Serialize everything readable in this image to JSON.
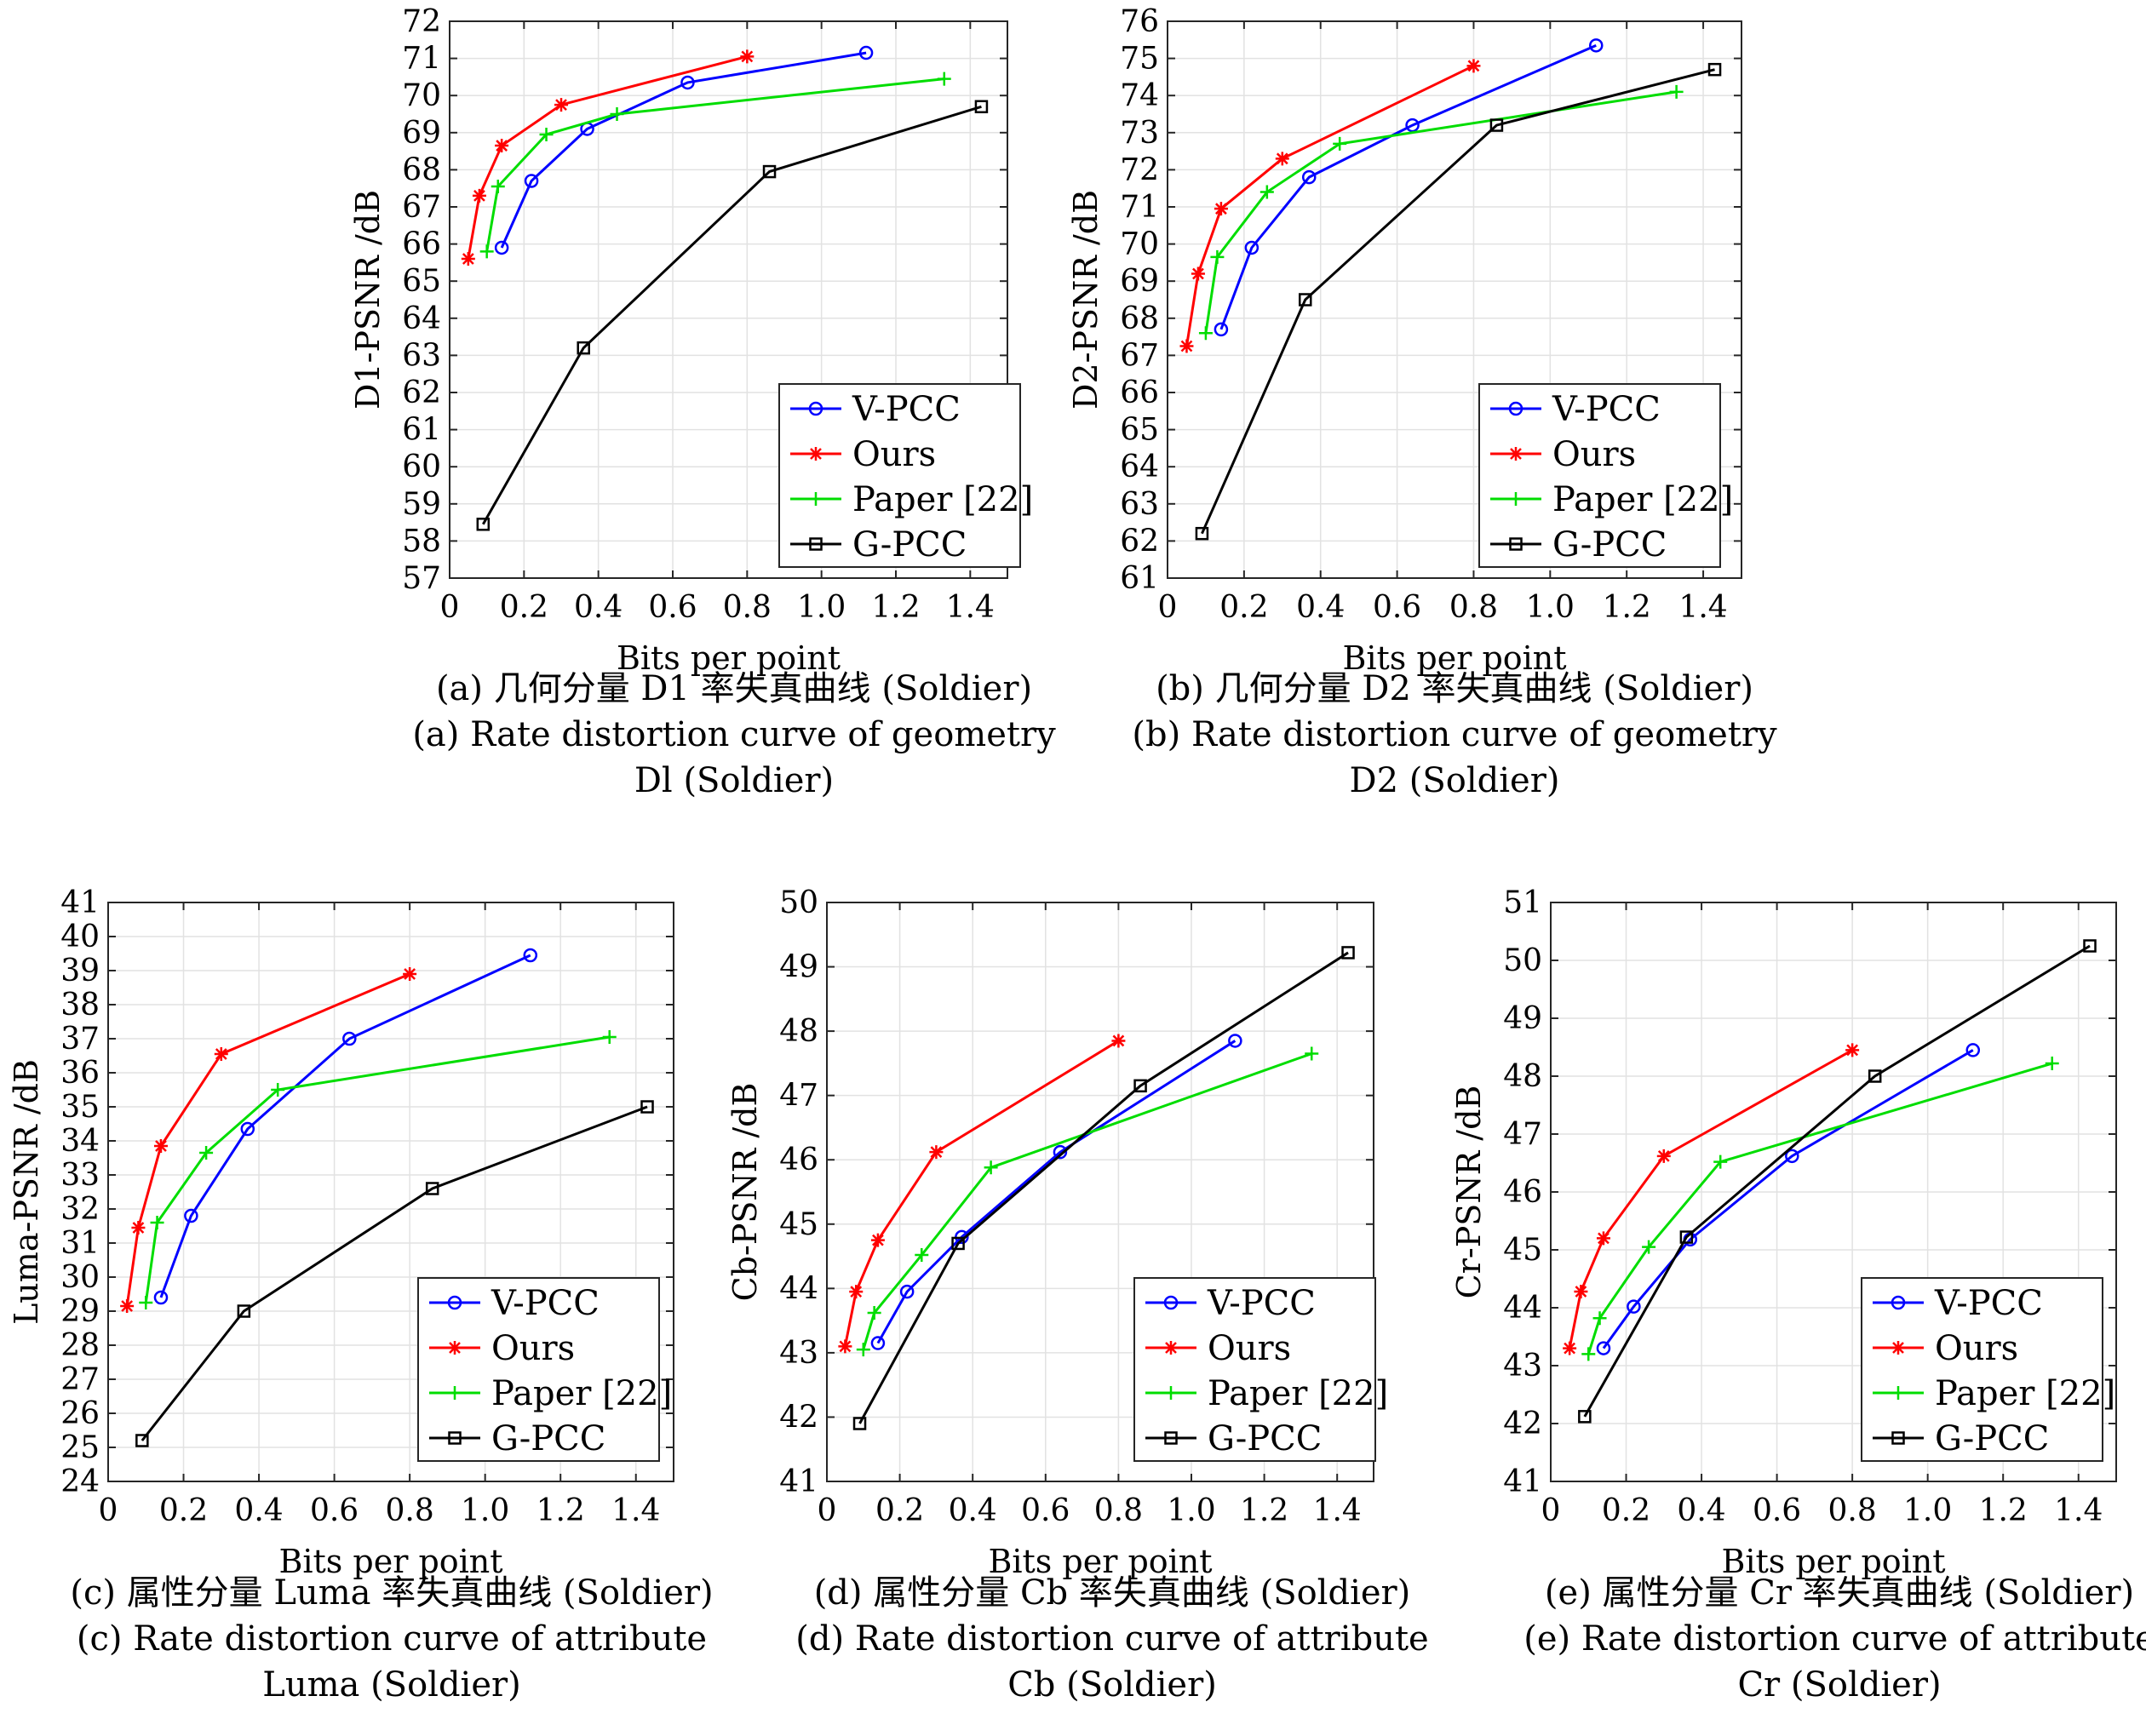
{
  "chart_data": [
    {
      "type": "line",
      "xlabel": "Bits per point",
      "ylabel": "D1-PSNR /dB",
      "xlim": [
        0,
        1.5
      ],
      "ylim": [
        57,
        72
      ],
      "x_ticks": [
        0,
        0.2,
        0.4,
        0.6,
        0.8,
        1.0,
        1.2,
        1.4
      ],
      "x_tick_labels": [
        "0",
        "0.2",
        "0.4",
        "0.6",
        "0.8",
        "1.0",
        "1.2",
        "1.4"
      ],
      "y_ticks": [
        57,
        58,
        59,
        60,
        61,
        62,
        63,
        64,
        65,
        66,
        67,
        68,
        69,
        70,
        71,
        72
      ],
      "y_tick_labels": [
        "57",
        "58",
        "59",
        "60",
        "61",
        "62",
        "63",
        "64",
        "65",
        "66",
        "67",
        "68",
        "69",
        "70",
        "71",
        "72"
      ],
      "grid": true,
      "legend": "bottom-right",
      "caption_cn": "(a) 几何分量 D1 率失真曲线 (Soldier)",
      "caption_en": [
        "(a) Rate distortion curve of geometry",
        "Dl (Soldier)"
      ],
      "series": [
        {
          "name": "V-PCC",
          "color": "#0000ff",
          "marker": "circle",
          "x": [
            0.14,
            0.22,
            0.37,
            0.64,
            1.12
          ],
          "y": [
            65.9,
            67.7,
            69.1,
            70.35,
            71.15
          ]
        },
        {
          "name": "Ours",
          "color": "#ff0000",
          "marker": "star",
          "x": [
            0.05,
            0.08,
            0.14,
            0.3,
            0.8
          ],
          "y": [
            65.6,
            67.3,
            68.65,
            69.75,
            71.05
          ]
        },
        {
          "name": "Paper [22]",
          "color": "#00dd00",
          "marker": "plus",
          "x": [
            0.1,
            0.13,
            0.26,
            0.45,
            1.33
          ],
          "y": [
            65.8,
            67.55,
            68.95,
            69.5,
            70.45
          ]
        },
        {
          "name": "G-PCC",
          "color": "#000000",
          "marker": "square",
          "x": [
            0.09,
            0.36,
            0.86,
            1.43
          ],
          "y": [
            58.45,
            63.2,
            67.95,
            69.7
          ]
        }
      ]
    },
    {
      "type": "line",
      "xlabel": "Bits per point",
      "ylabel": "D2-PSNR /dB",
      "xlim": [
        0,
        1.5
      ],
      "ylim": [
        61,
        76
      ],
      "x_ticks": [
        0,
        0.2,
        0.4,
        0.6,
        0.8,
        1.0,
        1.2,
        1.4
      ],
      "x_tick_labels": [
        "0",
        "0.2",
        "0.4",
        "0.6",
        "0.8",
        "1.0",
        "1.2",
        "1.4"
      ],
      "y_ticks": [
        61,
        62,
        63,
        64,
        65,
        66,
        67,
        68,
        69,
        70,
        71,
        72,
        73,
        74,
        75,
        76
      ],
      "y_tick_labels": [
        "61",
        "62",
        "63",
        "64",
        "65",
        "66",
        "67",
        "68",
        "69",
        "70",
        "71",
        "72",
        "73",
        "74",
        "75",
        "76"
      ],
      "grid": true,
      "legend": "bottom-right",
      "caption_cn": "(b) 几何分量 D2 率失真曲线 (Soldier)",
      "caption_en": [
        "(b) Rate distortion curve of geometry",
        "D2 (Soldier)"
      ],
      "series": [
        {
          "name": "V-PCC",
          "color": "#0000ff",
          "marker": "circle",
          "x": [
            0.14,
            0.22,
            0.37,
            0.64,
            1.12
          ],
          "y": [
            67.7,
            69.9,
            71.8,
            73.2,
            75.35
          ]
        },
        {
          "name": "Ours",
          "color": "#ff0000",
          "marker": "star",
          "x": [
            0.05,
            0.08,
            0.14,
            0.3,
            0.8
          ],
          "y": [
            67.25,
            69.2,
            70.95,
            72.3,
            74.8
          ]
        },
        {
          "name": "Paper [22]",
          "color": "#00dd00",
          "marker": "plus",
          "x": [
            0.1,
            0.13,
            0.26,
            0.45,
            1.33
          ],
          "y": [
            67.6,
            69.65,
            71.4,
            72.7,
            74.1
          ]
        },
        {
          "name": "G-PCC",
          "color": "#000000",
          "marker": "square",
          "x": [
            0.09,
            0.36,
            0.86,
            1.43
          ],
          "y": [
            62.2,
            68.5,
            73.2,
            74.7
          ]
        }
      ]
    },
    {
      "type": "line",
      "xlabel": "Bits per point",
      "ylabel": "Luma-PSNR /dB",
      "xlim": [
        0,
        1.5
      ],
      "ylim": [
        24,
        41
      ],
      "x_ticks": [
        0,
        0.2,
        0.4,
        0.6,
        0.8,
        1.0,
        1.2,
        1.4
      ],
      "x_tick_labels": [
        "0",
        "0.2",
        "0.4",
        "0.6",
        "0.8",
        "1.0",
        "1.2",
        "1.4"
      ],
      "y_ticks": [
        24,
        25,
        26,
        27,
        28,
        29,
        30,
        31,
        32,
        33,
        34,
        35,
        36,
        37,
        38,
        39,
        40,
        41
      ],
      "y_tick_labels": [
        "24",
        "25",
        "26",
        "27",
        "28",
        "29",
        "30",
        "31",
        "32",
        "33",
        "34",
        "35",
        "36",
        "37",
        "38",
        "39",
        "40",
        "41"
      ],
      "grid": true,
      "legend": "bottom-right",
      "caption_cn": "(c) 属性分量 Luma 率失真曲线 (Soldier)",
      "caption_en": [
        "(c) Rate distortion curve of attribute",
        "Luma (Soldier)"
      ],
      "series": [
        {
          "name": "V-PCC",
          "color": "#0000ff",
          "marker": "circle",
          "x": [
            0.14,
            0.22,
            0.37,
            0.64,
            1.12
          ],
          "y": [
            29.4,
            31.8,
            34.35,
            37.0,
            39.45
          ]
        },
        {
          "name": "Ours",
          "color": "#ff0000",
          "marker": "star",
          "x": [
            0.05,
            0.08,
            0.14,
            0.3,
            0.8
          ],
          "y": [
            29.15,
            31.45,
            33.85,
            36.55,
            38.9
          ]
        },
        {
          "name": "Paper [22]",
          "color": "#00dd00",
          "marker": "plus",
          "x": [
            0.1,
            0.13,
            0.26,
            0.45,
            1.33
          ],
          "y": [
            29.25,
            31.6,
            33.65,
            35.5,
            37.05
          ]
        },
        {
          "name": "G-PCC",
          "color": "#000000",
          "marker": "square",
          "x": [
            0.09,
            0.36,
            0.86,
            1.43
          ],
          "y": [
            25.2,
            29.0,
            32.6,
            35.0
          ]
        }
      ]
    },
    {
      "type": "line",
      "xlabel": "Bits per point",
      "ylabel": "Cb-PSNR /dB",
      "xlim": [
        0,
        1.5
      ],
      "ylim": [
        41,
        50
      ],
      "x_ticks": [
        0,
        0.2,
        0.4,
        0.6,
        0.8,
        1.0,
        1.2,
        1.4
      ],
      "x_tick_labels": [
        "0",
        "0.2",
        "0.4",
        "0.6",
        "0.8",
        "1.0",
        "1.2",
        "1.4"
      ],
      "y_ticks": [
        41,
        42,
        43,
        44,
        45,
        46,
        47,
        48,
        49,
        50
      ],
      "y_tick_labels": [
        "41",
        "42",
        "43",
        "44",
        "45",
        "46",
        "47",
        "48",
        "49",
        "50"
      ],
      "grid": true,
      "legend": "bottom-right",
      "caption_cn": "(d) 属性分量 Cb 率失真曲线 (Soldier)",
      "caption_en": [
        "(d) Rate distortion curve of attribute",
        "Cb (Soldier)"
      ],
      "series": [
        {
          "name": "V-PCC",
          "color": "#0000ff",
          "marker": "circle",
          "x": [
            0.14,
            0.22,
            0.37,
            0.64,
            1.12
          ],
          "y": [
            43.15,
            43.95,
            44.8,
            46.12,
            47.85
          ]
        },
        {
          "name": "Ours",
          "color": "#ff0000",
          "marker": "star",
          "x": [
            0.05,
            0.08,
            0.14,
            0.3,
            0.8
          ],
          "y": [
            43.1,
            43.95,
            44.75,
            46.12,
            47.85
          ]
        },
        {
          "name": "Paper [22]",
          "color": "#00dd00",
          "marker": "plus",
          "x": [
            0.1,
            0.13,
            0.26,
            0.45,
            1.33
          ],
          "y": [
            43.05,
            43.62,
            44.52,
            45.88,
            47.65
          ]
        },
        {
          "name": "G-PCC",
          "color": "#000000",
          "marker": "square",
          "x": [
            0.09,
            0.36,
            0.86,
            1.43
          ],
          "y": [
            41.9,
            44.7,
            47.15,
            49.22
          ]
        }
      ]
    },
    {
      "type": "line",
      "xlabel": "Bits per point",
      "ylabel": "Cr-PSNR /dB",
      "xlim": [
        0,
        1.5
      ],
      "ylim": [
        41,
        51
      ],
      "x_ticks": [
        0,
        0.2,
        0.4,
        0.6,
        0.8,
        1.0,
        1.2,
        1.4
      ],
      "x_tick_labels": [
        "0",
        "0.2",
        "0.4",
        "0.6",
        "0.8",
        "1.0",
        "1.2",
        "1.4"
      ],
      "y_ticks": [
        41,
        42,
        43,
        44,
        45,
        46,
        47,
        48,
        49,
        50,
        51
      ],
      "y_tick_labels": [
        "41",
        "42",
        "43",
        "44",
        "45",
        "46",
        "47",
        "48",
        "49",
        "50",
        "51"
      ],
      "grid": true,
      "legend": "bottom-right",
      "caption_cn": "(e) 属性分量 Cr 率失真曲线 (Soldier)",
      "caption_en": [
        "(e) Rate distortion curve of attribute",
        "Cr (Soldier)"
      ],
      "series": [
        {
          "name": "V-PCC",
          "color": "#0000ff",
          "marker": "circle",
          "x": [
            0.14,
            0.22,
            0.37,
            0.64,
            1.12
          ],
          "y": [
            43.3,
            44.02,
            45.18,
            46.62,
            48.45
          ]
        },
        {
          "name": "Ours",
          "color": "#ff0000",
          "marker": "star",
          "x": [
            0.05,
            0.08,
            0.14,
            0.3,
            0.8
          ],
          "y": [
            43.3,
            44.28,
            45.2,
            46.62,
            48.45
          ]
        },
        {
          "name": "Paper [22]",
          "color": "#00dd00",
          "marker": "plus",
          "x": [
            0.1,
            0.13,
            0.26,
            0.45,
            1.33
          ],
          "y": [
            43.2,
            43.82,
            45.05,
            46.52,
            48.22
          ]
        },
        {
          "name": "G-PCC",
          "color": "#000000",
          "marker": "square",
          "x": [
            0.09,
            0.36,
            0.86,
            1.43
          ],
          "y": [
            42.12,
            45.22,
            48.0,
            50.25
          ]
        }
      ]
    }
  ]
}
